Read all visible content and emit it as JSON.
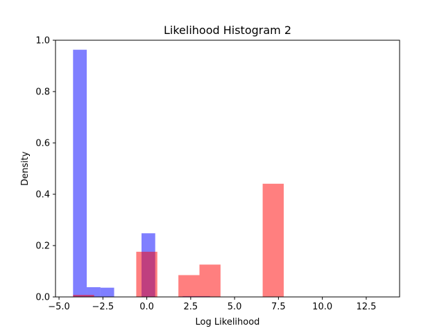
{
  "chart_data": {
    "type": "bar",
    "title": "Likelihood Histogram 2",
    "xlabel": "Log Likelihood",
    "ylabel": "Density",
    "xlim": [
      -5.2,
      14.4
    ],
    "ylim": [
      0,
      1.0
    ],
    "xticks": [
      -5.0,
      -2.5,
      0.0,
      2.5,
      5.0,
      7.5,
      10.0,
      12.5
    ],
    "xtick_labels": [
      "−5.0",
      "−2.5",
      "0.0",
      "2.5",
      "5.0",
      "7.5",
      "10.0",
      "12.5"
    ],
    "yticks": [
      0.0,
      0.2,
      0.4,
      0.6,
      0.8,
      1.0
    ],
    "ytick_labels": [
      "0.0",
      "0.2",
      "0.4",
      "0.6",
      "0.8",
      "1.0"
    ],
    "grid": false,
    "series": [
      {
        "color": "#0000ff",
        "opacity": 0.5,
        "bins": [
          {
            "x0": -4.2,
            "x1": -3.42,
            "value": 0.963
          },
          {
            "x0": -3.42,
            "x1": -2.64,
            "value": 0.038
          },
          {
            "x0": -2.64,
            "x1": -1.86,
            "value": 0.036
          },
          {
            "x0": -0.3,
            "x1": 0.48,
            "value": 0.248
          },
          {
            "x0": 2.04,
            "x1": 2.82,
            "value": 0.003
          },
          {
            "x0": 2.82,
            "x1": 3.6,
            "value": 0.003
          }
        ]
      },
      {
        "color": "#ff0000",
        "opacity": 0.5,
        "bins": [
          {
            "x0": -4.2,
            "x1": -3.0,
            "value": 0.008
          },
          {
            "x0": -0.6,
            "x1": 0.6,
            "value": 0.176
          },
          {
            "x0": 1.8,
            "x1": 3.0,
            "value": 0.085
          },
          {
            "x0": 3.0,
            "x1": 4.2,
            "value": 0.126
          },
          {
            "x0": 6.6,
            "x1": 7.8,
            "value": 0.441
          }
        ]
      }
    ]
  }
}
